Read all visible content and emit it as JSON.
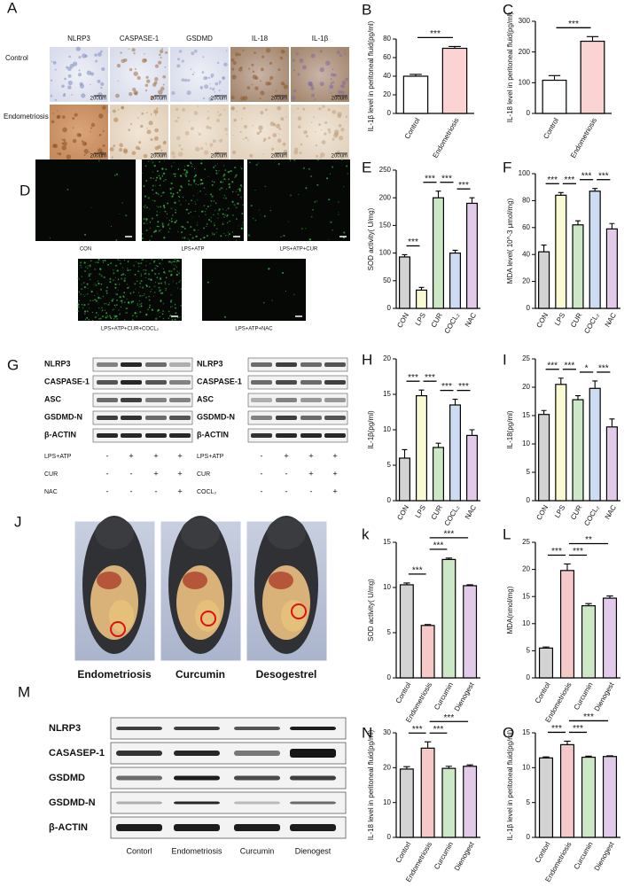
{
  "chart_data": [
    {
      "type": "bar",
      "panel": "B",
      "y_label": "IL-1β level in peritoneal fluid(pg/ml)",
      "categories": [
        "Control",
        "Endometriosis"
      ],
      "values": [
        40,
        70
      ],
      "errors": [
        2,
        2
      ],
      "colors": [
        "#ffffff",
        "#fbd3d3"
      ],
      "ylim": [
        0,
        80
      ],
      "yticks": [
        0,
        20,
        40,
        60,
        80
      ],
      "comparisons": [
        {
          "label": "***",
          "between": [
            "Control",
            "Endometriosis"
          ]
        }
      ]
    },
    {
      "type": "bar",
      "panel": "C",
      "y_label": "IL-18 level in peritoneal fluid(pg/ml)",
      "categories": [
        "Control",
        "Endometriosis"
      ],
      "values": [
        108,
        235
      ],
      "errors": [
        15,
        15
      ],
      "colors": [
        "#ffffff",
        "#fbd3d3"
      ],
      "ylim": [
        0,
        300
      ],
      "yticks": [
        0,
        100,
        200,
        300
      ],
      "comparisons": [
        {
          "label": "***",
          "between": [
            "Control",
            "Endometriosis"
          ]
        }
      ]
    },
    {
      "type": "bar",
      "panel": "E",
      "y_label": "SOD activity( U/mg)",
      "categories": [
        "CON",
        "LPS",
        "CUR",
        "COCL₂",
        "NAC"
      ],
      "values": [
        93,
        33,
        200,
        100,
        190
      ],
      "errors": [
        4,
        5,
        12,
        5,
        10
      ],
      "colors": [
        "#d3d3d3",
        "#fafad2",
        "#cde8c6",
        "#cddcf3",
        "#e2cbe9"
      ],
      "ylim": [
        0,
        250
      ],
      "yticks": [
        0,
        50,
        100,
        150,
        200,
        250
      ],
      "comparisons": [
        {
          "label": "***",
          "between": [
            "CON",
            "LPS"
          ]
        },
        {
          "label": "***",
          "between": [
            "LPS",
            "CUR"
          ]
        },
        {
          "label": "***",
          "between": [
            "CUR",
            "COCL₂"
          ]
        },
        {
          "label": "***",
          "between": [
            "COCL₂",
            "NAC"
          ]
        }
      ]
    },
    {
      "type": "bar",
      "panel": "F",
      "y_label": "MDA level( 10^-3 μmol/mg)",
      "categories": [
        "CON",
        "LPS",
        "CUR",
        "COCL₂",
        "NAC"
      ],
      "values": [
        42,
        84,
        62,
        87,
        59
      ],
      "errors": [
        5,
        2,
        3,
        2,
        4
      ],
      "colors": [
        "#d3d3d3",
        "#fafad2",
        "#cde8c6",
        "#cddcf3",
        "#e2cbe9"
      ],
      "ylim": [
        0,
        100
      ],
      "yticks": [
        0,
        20,
        40,
        60,
        80,
        100
      ],
      "comparisons": [
        {
          "label": "***",
          "between": [
            "CON",
            "LPS"
          ]
        },
        {
          "label": "***",
          "between": [
            "LPS",
            "CUR"
          ]
        },
        {
          "label": "***",
          "between": [
            "CUR",
            "COCL₂"
          ]
        },
        {
          "label": "***",
          "between": [
            "COCL₂",
            "NAC"
          ]
        }
      ]
    },
    {
      "type": "bar",
      "panel": "H",
      "y_label": "IL-1β(pg/ml)",
      "categories": [
        "CON",
        "LPS",
        "CUR",
        "COCL₂",
        "NAC"
      ],
      "values": [
        6,
        14.8,
        7.5,
        13.5,
        9.2
      ],
      "errors": [
        1.2,
        0.8,
        0.6,
        0.8,
        0.8
      ],
      "colors": [
        "#d3d3d3",
        "#fafad2",
        "#cde8c6",
        "#cddcf3",
        "#e2cbe9"
      ],
      "ylim": [
        0,
        20
      ],
      "yticks": [
        0,
        5,
        10,
        15,
        20
      ],
      "comparisons": [
        {
          "label": "***",
          "between": [
            "CON",
            "LPS"
          ]
        },
        {
          "label": "***",
          "between": [
            "LPS",
            "CUR"
          ]
        },
        {
          "label": "***",
          "between": [
            "CUR",
            "COCL₂"
          ]
        },
        {
          "label": "***",
          "between": [
            "COCL₂",
            "NAC"
          ]
        }
      ]
    },
    {
      "type": "bar",
      "panel": "I",
      "y_label": "IL-18(pg/ml)",
      "categories": [
        "CON",
        "LPS",
        "CUR",
        "COCL₂",
        "NAC"
      ],
      "values": [
        15.2,
        20.5,
        17.8,
        19.8,
        13
      ],
      "errors": [
        0.7,
        1.1,
        0.7,
        1.3,
        1.4
      ],
      "colors": [
        "#d3d3d3",
        "#fafad2",
        "#cde8c6",
        "#cddcf3",
        "#e2cbe9"
      ],
      "ylim": [
        0,
        25
      ],
      "yticks": [
        0,
        5,
        10,
        15,
        20,
        25
      ],
      "comparisons": [
        {
          "label": "***",
          "between": [
            "CON",
            "LPS"
          ]
        },
        {
          "label": "***",
          "between": [
            "LPS",
            "CUR"
          ]
        },
        {
          "label": "*",
          "between": [
            "CUR",
            "COCL₂"
          ]
        },
        {
          "label": "***",
          "between": [
            "COCL₂",
            "NAC"
          ]
        }
      ]
    },
    {
      "type": "bar",
      "panel": "k",
      "y_label": "SOD activity( U/mg)",
      "categories": [
        "Control",
        "Endometriosis",
        "Curcumin",
        "Dienogest"
      ],
      "values": [
        10.3,
        5.8,
        13.1,
        10.2
      ],
      "errors": [
        0.2,
        0.1,
        0.15,
        0.1
      ],
      "colors": [
        "#d3d3d3",
        "#f6c9c9",
        "#cde8c6",
        "#e2cbe9"
      ],
      "ylim": [
        0,
        15
      ],
      "yticks": [
        0,
        5,
        10,
        15
      ],
      "comparisons": [
        {
          "label": "***",
          "between": [
            "Control",
            "Endometriosis"
          ]
        },
        {
          "label": "***",
          "between": [
            "Endometriosis",
            "Curcumin"
          ]
        },
        {
          "label": "***",
          "between": [
            "Endometriosis",
            "Dienogest"
          ]
        }
      ]
    },
    {
      "type": "bar",
      "panel": "L",
      "y_label": "MDA(nmol/mg)",
      "categories": [
        "Control",
        "Endometriosis",
        "Curcumin",
        "Dienogest"
      ],
      "values": [
        5.5,
        19.8,
        13.3,
        14.7
      ],
      "errors": [
        0.2,
        1.2,
        0.4,
        0.4
      ],
      "colors": [
        "#d3d3d3",
        "#f6c9c9",
        "#cde8c6",
        "#e2cbe9"
      ],
      "ylim": [
        0,
        25
      ],
      "yticks": [
        0,
        5,
        10,
        15,
        20,
        25
      ],
      "comparisons": [
        {
          "label": "***",
          "between": [
            "Control",
            "Endometriosis"
          ]
        },
        {
          "label": "***",
          "between": [
            "Endometriosis",
            "Curcumin"
          ]
        },
        {
          "label": "**",
          "between": [
            "Endometriosis",
            "Dienogest"
          ]
        }
      ]
    },
    {
      "type": "bar",
      "panel": "N",
      "y_label": "IL-18 level in peritoneal fluid(pg/ml)",
      "categories": [
        "Contorl",
        "Endometriosis",
        "Curcumin",
        "Dienogest"
      ],
      "values": [
        19.6,
        25.6,
        19.8,
        20.4
      ],
      "errors": [
        0.7,
        1.8,
        0.6,
        0.4
      ],
      "colors": [
        "#d3d3d3",
        "#f6c9c9",
        "#cde8c6",
        "#e2cbe9"
      ],
      "ylim": [
        0,
        30
      ],
      "yticks": [
        0,
        10,
        20,
        30
      ],
      "comparisons": [
        {
          "label": "***",
          "between": [
            "Contorl",
            "Endometriosis"
          ]
        },
        {
          "label": "***",
          "between": [
            "Endometriosis",
            "Curcumin"
          ]
        },
        {
          "label": "***",
          "between": [
            "Endometriosis",
            "Dienogest"
          ]
        }
      ]
    },
    {
      "type": "bar",
      "panel": "O",
      "y_label": "IL-1β level in peritoneal fluid(pg/ml)",
      "categories": [
        "Contorl",
        "Endometriosis",
        "Curcumin",
        "Dienogest"
      ],
      "values": [
        11.4,
        13.3,
        11.5,
        11.6
      ],
      "errors": [
        0.15,
        0.5,
        0.15,
        0.1
      ],
      "colors": [
        "#d3d3d3",
        "#f6c9c9",
        "#cde8c6",
        "#e2cbe9"
      ],
      "ylim": [
        0,
        15
      ],
      "yticks": [
        0,
        5,
        10,
        15
      ],
      "comparisons": [
        {
          "label": "***",
          "between": [
            "Contorl",
            "Endometriosis"
          ]
        },
        {
          "label": "***",
          "between": [
            "Endometriosis",
            "Curcumin"
          ]
        },
        {
          "label": "***",
          "between": [
            "Endometriosis",
            "Dienogest"
          ]
        }
      ]
    }
  ],
  "images": {
    "panel_a": {
      "panel": "A",
      "columns": [
        "NLRP3",
        "CASPASE-1",
        "GSDMD",
        "IL-18",
        "IL-1β"
      ],
      "rows": [
        "Control",
        "Endometriosis"
      ],
      "scale_bar": "200um"
    },
    "panel_d": {
      "panel": "D",
      "images": [
        "CON",
        "LPS+ATP",
        "LPS+ATP+CUR",
        "LPS+ATP+CUR+COCL₂",
        "LPS+ATP+NAC"
      ]
    },
    "panel_g": {
      "panel": "G",
      "blots": [
        {
          "proteins": [
            "NLRP3",
            "CASPASE-1",
            "ASC",
            "GSDMD-N",
            "β-ACTIN"
          ],
          "treatments": [
            {
              "name": "LPS+ATP",
              "signs": [
                "-",
                "+",
                "+",
                "+"
              ]
            },
            {
              "name": "CUR",
              "signs": [
                "-",
                "-",
                "+",
                "+"
              ]
            },
            {
              "name": "NAC",
              "signs": [
                "-",
                "-",
                "-",
                "+"
              ]
            }
          ]
        },
        {
          "proteins": [
            "NLRP3",
            "CASPASE-1",
            "ASC",
            "GSDMD-N",
            "β-ACTIN"
          ],
          "treatments": [
            {
              "name": "LPS+ATP",
              "signs": [
                "-",
                "+",
                "+",
                "+"
              ]
            },
            {
              "name": "CUR",
              "signs": [
                "-",
                "-",
                "+",
                "+"
              ]
            },
            {
              "name": "COCL₂",
              "signs": [
                "-",
                "-",
                "-",
                "+"
              ]
            }
          ]
        }
      ]
    },
    "panel_j": {
      "panel": "J",
      "groups": [
        "Endometriosis",
        "Curcumin",
        "Desogestrel"
      ]
    },
    "panel_m": {
      "panel": "M",
      "proteins": [
        "NLRP3",
        "CASASEP-1",
        "GSDMD",
        "GSDMD-N",
        "β-ACTIN"
      ],
      "groups": [
        "Contorl",
        "Endometriosis",
        "Curcumin",
        "Dienogest"
      ]
    }
  }
}
